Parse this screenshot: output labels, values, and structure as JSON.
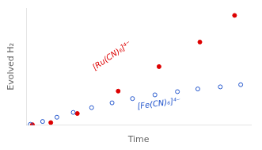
{
  "chart_data": {
    "type": "scatter",
    "xlabel": "Time",
    "ylabel": "Evolved H₂",
    "xlim": [
      0,
      11
    ],
    "ylim": [
      0,
      11
    ],
    "tick_labels": false,
    "grid": false,
    "series": [
      {
        "color": "#2255cc",
        "marker": "open_circle",
        "x": [
          0.2,
          0.8,
          1.5,
          2.3,
          3.2,
          4.2,
          5.2,
          6.3,
          7.4,
          8.4,
          9.5,
          10.5
        ],
        "values": [
          0.08,
          0.35,
          0.75,
          1.2,
          1.65,
          2.1,
          2.5,
          2.85,
          3.15,
          3.4,
          3.6,
          3.8
        ]
      },
      {
        "color": "#dd0000",
        "marker": "circle",
        "x": [
          0.3,
          1.2,
          2.5,
          4.5,
          6.5,
          8.5,
          10.2
        ],
        "values": [
          0.05,
          0.25,
          1.1,
          3.2,
          5.5,
          7.8,
          10.3
        ]
      }
    ],
    "annotations": [
      {
        "text": "[Ru(CN)₆]⁴⁻",
        "x": 4.2,
        "y": 6.5,
        "color": "#dd0000"
      },
      {
        "text": "[Fe(CN)₆]⁴⁻",
        "x": 6.5,
        "y": 2.0,
        "color": "#2255cc"
      }
    ]
  }
}
